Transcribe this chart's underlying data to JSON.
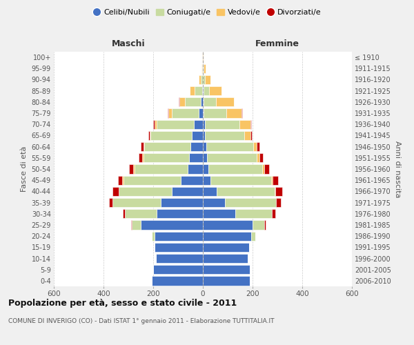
{
  "age_groups": [
    "0-4",
    "5-9",
    "10-14",
    "15-19",
    "20-24",
    "25-29",
    "30-34",
    "35-39",
    "40-44",
    "45-49",
    "50-54",
    "55-59",
    "60-64",
    "65-69",
    "70-74",
    "75-79",
    "80-84",
    "85-89",
    "90-94",
    "95-99",
    "100+"
  ],
  "birth_years": [
    "2006-2010",
    "2001-2005",
    "1996-2000",
    "1991-1995",
    "1986-1990",
    "1981-1985",
    "1976-1980",
    "1971-1975",
    "1966-1970",
    "1961-1965",
    "1956-1960",
    "1951-1955",
    "1946-1950",
    "1941-1945",
    "1936-1940",
    "1931-1935",
    "1926-1930",
    "1921-1925",
    "1916-1920",
    "1911-1915",
    "≤ 1910"
  ],
  "colors": {
    "celibi": "#4472C4",
    "coniugati": "#C8DBA0",
    "vedovi": "#F9C464",
    "divorziati": "#C00000"
  },
  "maschi": {
    "celibi": [
      205,
      200,
      190,
      195,
      195,
      250,
      185,
      170,
      125,
      90,
      60,
      55,
      50,
      45,
      35,
      18,
      8,
      4,
      1,
      1,
      0
    ],
    "coniugati": [
      0,
      0,
      0,
      0,
      10,
      35,
      130,
      195,
      215,
      230,
      215,
      185,
      185,
      165,
      150,
      108,
      65,
      30,
      8,
      2,
      1
    ],
    "vedovi": [
      0,
      0,
      0,
      0,
      0,
      0,
      0,
      0,
      0,
      5,
      5,
      5,
      5,
      5,
      10,
      14,
      22,
      18,
      8,
      3,
      1
    ],
    "divorziati": [
      0,
      0,
      0,
      0,
      0,
      5,
      8,
      12,
      25,
      18,
      18,
      14,
      10,
      5,
      4,
      2,
      1,
      0,
      0,
      0,
      0
    ]
  },
  "femmine": {
    "celibi": [
      190,
      190,
      180,
      185,
      195,
      200,
      130,
      90,
      55,
      30,
      22,
      18,
      14,
      9,
      7,
      4,
      3,
      2,
      1,
      1,
      0
    ],
    "coniugati": [
      0,
      0,
      0,
      0,
      15,
      48,
      148,
      205,
      235,
      245,
      218,
      200,
      190,
      158,
      140,
      90,
      50,
      22,
      7,
      2,
      1
    ],
    "vedovi": [
      0,
      0,
      0,
      0,
      0,
      0,
      0,
      0,
      2,
      5,
      8,
      10,
      14,
      25,
      44,
      62,
      72,
      52,
      22,
      8,
      3
    ],
    "divorziati": [
      0,
      0,
      0,
      0,
      2,
      5,
      14,
      18,
      28,
      24,
      18,
      14,
      9,
      5,
      3,
      2,
      1,
      0,
      0,
      0,
      0
    ]
  },
  "xlim": 600,
  "title": "Popolazione per età, sesso e stato civile - 2011",
  "subtitle": "COMUNE DI INVERIGO (CO) - Dati ISTAT 1° gennaio 2011 - Elaborazione TUTTITALIA.IT",
  "xlabel_left": "Maschi",
  "xlabel_right": "Femmine",
  "ylabel_left": "Fasce di età",
  "ylabel_right": "Anni di nascita",
  "legend_labels": [
    "Celibi/Nubili",
    "Coniugati/e",
    "Vedovi/e",
    "Divorziati/e"
  ],
  "background_color": "#f0f0f0",
  "plot_background": "#ffffff"
}
